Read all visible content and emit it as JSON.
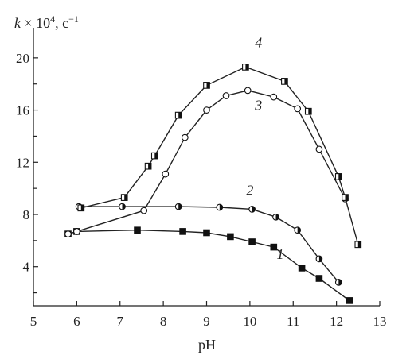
{
  "chart_data": {
    "type": "scatter",
    "xlabel": "pH",
    "ylabel_italic": "k",
    "ylabel_rest": " × 10",
    "ylabel_sup": "4",
    "ylabel_unit": ", c",
    "ylabel_unit_sup": "−1",
    "xlim": [
      5,
      13
    ],
    "ylim": [
      1,
      22
    ],
    "xticks": [
      5,
      6,
      7,
      8,
      9,
      10,
      11,
      12,
      13
    ],
    "yticks": [
      4,
      8,
      12,
      16,
      20
    ],
    "grid": false,
    "series": [
      {
        "name": "1",
        "marker": "square-filled",
        "x": [
          5.8,
          6.0,
          7.4,
          8.45,
          9.0,
          9.55,
          10.05,
          10.55,
          11.2,
          11.6,
          12.3
        ],
        "y": [
          6.5,
          6.7,
          6.8,
          6.7,
          6.6,
          6.3,
          5.9,
          5.5,
          3.9,
          3.1,
          1.4
        ]
      },
      {
        "name": "2",
        "marker": "circle-half",
        "x": [
          6.05,
          7.05,
          8.35,
          9.3,
          10.05,
          10.6,
          11.1,
          11.6,
          12.05
        ],
        "y": [
          8.6,
          8.6,
          8.6,
          8.55,
          8.4,
          7.8,
          6.8,
          4.6,
          2.8
        ]
      },
      {
        "name": "3",
        "marker": "circle-open",
        "x": [
          5.8,
          6.0,
          7.55,
          8.05,
          8.5,
          9.0,
          9.45,
          9.95,
          10.55,
          11.1,
          11.6,
          12.2
        ],
        "y": [
          6.5,
          6.7,
          8.3,
          11.1,
          13.9,
          16.0,
          17.1,
          17.5,
          17.0,
          16.1,
          13.0,
          9.2
        ]
      },
      {
        "name": "4",
        "marker": "square-half",
        "x": [
          6.1,
          7.1,
          7.65,
          7.8,
          8.35,
          9.0,
          9.9,
          10.8,
          11.35,
          12.05,
          12.2,
          12.5
        ],
        "y": [
          8.5,
          9.3,
          11.7,
          12.5,
          15.6,
          17.9,
          19.3,
          18.2,
          15.9,
          10.9,
          9.3,
          5.7
        ]
      }
    ],
    "annotations": [
      {
        "text": "1",
        "x": 10.7,
        "y": 4.6
      },
      {
        "text": "2",
        "x": 10.0,
        "y": 9.5
      },
      {
        "text": "3",
        "x": 10.2,
        "y": 16.0
      },
      {
        "text": "4",
        "x": 10.2,
        "y": 20.8
      }
    ]
  }
}
